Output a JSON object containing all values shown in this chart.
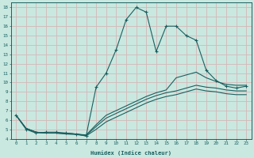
{
  "xlabel": "Humidex (Indice chaleur)",
  "bg_color": "#c9e8e0",
  "line_color": "#1a6060",
  "grid_color": "#d4b8b8",
  "xmin": -0.5,
  "xmax": 23.5,
  "ymin": 4,
  "ymax": 18.5,
  "line1_x": [
    0,
    1,
    2,
    3,
    4,
    5,
    6,
    7,
    8,
    9,
    10,
    11,
    12,
    13,
    14,
    15,
    16,
    17,
    18,
    19,
    20,
    21,
    22,
    23
  ],
  "line1_y": [
    6.5,
    5.0,
    4.6,
    4.7,
    4.7,
    4.6,
    4.5,
    4.3,
    9.5,
    11.0,
    13.5,
    16.7,
    18.0,
    17.5,
    13.3,
    16.0,
    16.0,
    15.0,
    14.5,
    11.3,
    10.2,
    9.6,
    9.4,
    9.6
  ],
  "line2_x": [
    0,
    1,
    2,
    3,
    4,
    5,
    6,
    7,
    8,
    9,
    10,
    11,
    12,
    13,
    14,
    15,
    16,
    17,
    18,
    19,
    20,
    21,
    22,
    23
  ],
  "line2_y": [
    6.5,
    5.1,
    4.7,
    4.6,
    4.6,
    4.6,
    4.5,
    4.4,
    5.5,
    6.5,
    7.0,
    7.5,
    8.0,
    8.5,
    8.9,
    9.2,
    10.5,
    10.8,
    11.1,
    10.5,
    10.1,
    9.8,
    9.7,
    9.7
  ],
  "line3_x": [
    0,
    1,
    2,
    3,
    4,
    5,
    6,
    7,
    8,
    9,
    10,
    11,
    12,
    13,
    14,
    15,
    16,
    17,
    18,
    19,
    20,
    21,
    22,
    23
  ],
  "line3_y": [
    6.5,
    5.1,
    4.7,
    4.6,
    4.6,
    4.55,
    4.5,
    4.35,
    5.3,
    6.2,
    6.7,
    7.2,
    7.7,
    8.2,
    8.6,
    8.9,
    9.1,
    9.4,
    9.7,
    9.5,
    9.4,
    9.2,
    9.1,
    9.1
  ],
  "line4_x": [
    0,
    1,
    2,
    3,
    4,
    5,
    6,
    7,
    8,
    9,
    10,
    11,
    12,
    13,
    14,
    15,
    16,
    17,
    18,
    19,
    20,
    21,
    22,
    23
  ],
  "line4_y": [
    6.5,
    5.1,
    4.7,
    4.6,
    4.6,
    4.5,
    4.45,
    4.3,
    5.0,
    5.8,
    6.3,
    6.8,
    7.3,
    7.8,
    8.2,
    8.5,
    8.7,
    9.0,
    9.3,
    9.1,
    9.0,
    8.8,
    8.7,
    8.7
  ],
  "yticks": [
    4,
    5,
    6,
    7,
    8,
    9,
    10,
    11,
    12,
    13,
    14,
    15,
    16,
    17,
    18
  ],
  "xticks": [
    0,
    1,
    2,
    3,
    4,
    5,
    6,
    7,
    8,
    9,
    10,
    11,
    12,
    13,
    14,
    15,
    16,
    17,
    18,
    19,
    20,
    21,
    22,
    23
  ]
}
